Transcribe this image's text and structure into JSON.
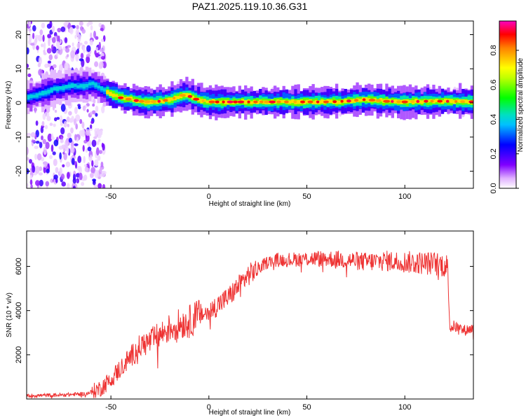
{
  "title": "PAZ1.2025.119.10.36.G31",
  "chart_data": [
    {
      "type": "heatmap",
      "xlabel": "Height of straight line (km)",
      "ylabel": "Frequency (Hz)",
      "xlim": [
        -93,
        135
      ],
      "ylim": [
        -25,
        24
      ],
      "xticks": [
        -50,
        0,
        50,
        100
      ],
      "yticks": [
        -20,
        -10,
        0,
        10,
        20
      ],
      "ridge_frequency": {
        "x": [
          -93,
          -85,
          -80,
          -75,
          -70,
          -65,
          -60,
          -55,
          -50,
          -45,
          -40,
          -35,
          -30,
          -25,
          -20,
          -15,
          -12,
          -10,
          -5,
          0,
          10,
          20,
          30,
          40,
          50,
          60,
          70,
          80,
          90,
          100,
          110,
          120,
          135
        ],
        "y": [
          1.5,
          3,
          4,
          4.5,
          5,
          5,
          5.5,
          4,
          2.5,
          1.5,
          1,
          0.5,
          0.3,
          0.5,
          1,
          2,
          2.5,
          2,
          0.7,
          0.3,
          0.3,
          0.3,
          0.3,
          0.3,
          0.3,
          0.3,
          0.5,
          1,
          0.5,
          0.3,
          0.5,
          0.5,
          0.3
        ]
      },
      "colorbar": {
        "label": "Normalized spectral amplitude",
        "range": [
          0,
          0.97
        ],
        "ticks": [
          "0.0",
          "0.2",
          "0.4",
          "0.6",
          "0.8"
        ]
      }
    },
    {
      "type": "line",
      "xlabel": "Height of straight line (km)",
      "ylabel": "SNR (10 * v/v)",
      "xlim": [
        -93,
        135
      ],
      "ylim": [
        0,
        7600
      ],
      "xticks": [
        -50,
        0,
        50,
        100
      ],
      "yticks": [
        2000,
        4000,
        6000
      ],
      "series": [
        {
          "color": "#ee3333",
          "x": [
            -93,
            -80,
            -70,
            -62,
            -55,
            -50,
            -45,
            -40,
            -35,
            -30,
            -25,
            -20,
            -15,
            -10,
            -5,
            0,
            5,
            10,
            15,
            20,
            25,
            30,
            35,
            40,
            50,
            60,
            70,
            80,
            90,
            100,
            110,
            118,
            122,
            123,
            125,
            130,
            135
          ],
          "y": [
            150,
            170,
            200,
            250,
            500,
            900,
            1400,
            1900,
            2400,
            2600,
            2900,
            3200,
            3400,
            3500,
            3800,
            3900,
            4300,
            4600,
            5100,
            5600,
            5900,
            6200,
            6300,
            6300,
            6350,
            6350,
            6300,
            6200,
            6250,
            6200,
            6150,
            6100,
            6000,
            3200,
            3300,
            3100,
            3200
          ]
        }
      ]
    }
  ]
}
